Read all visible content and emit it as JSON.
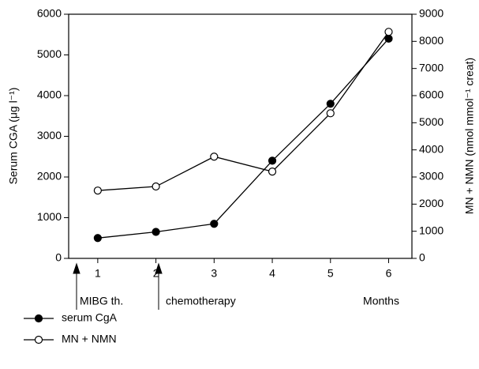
{
  "chart_data": {
    "type": "line",
    "ylabel": "Serum CGA (μg l⁻¹)",
    "y2label": "MN + NMN (nmol mmol⁻¹ creat)",
    "xlabel": "Months",
    "annotations": [
      "MIBG th.",
      "chemotherapy"
    ],
    "x": [
      1,
      2,
      3,
      4,
      5,
      6
    ],
    "xlim": [
      0.5,
      6.4
    ],
    "xticks": [
      1,
      2,
      3,
      4,
      5,
      6
    ],
    "ylim": [
      0,
      6000
    ],
    "yticks": [
      0,
      1000,
      2000,
      3000,
      4000,
      5000,
      6000
    ],
    "y2lim": [
      0,
      9000
    ],
    "y2ticks": [
      0,
      1000,
      2000,
      3000,
      4000,
      5000,
      6000,
      7000,
      8000,
      9000
    ],
    "series": [
      {
        "name": "serum CgA",
        "color": "#000000",
        "marker_filled": true,
        "values": [
          500,
          650,
          850,
          2400,
          3800,
          5400
        ]
      },
      {
        "name": "MN + NMN",
        "color": "#000000",
        "marker_filled": false,
        "axis": "y2",
        "values": [
          2500,
          2650,
          3750,
          3200,
          5350,
          8350
        ]
      }
    ]
  }
}
